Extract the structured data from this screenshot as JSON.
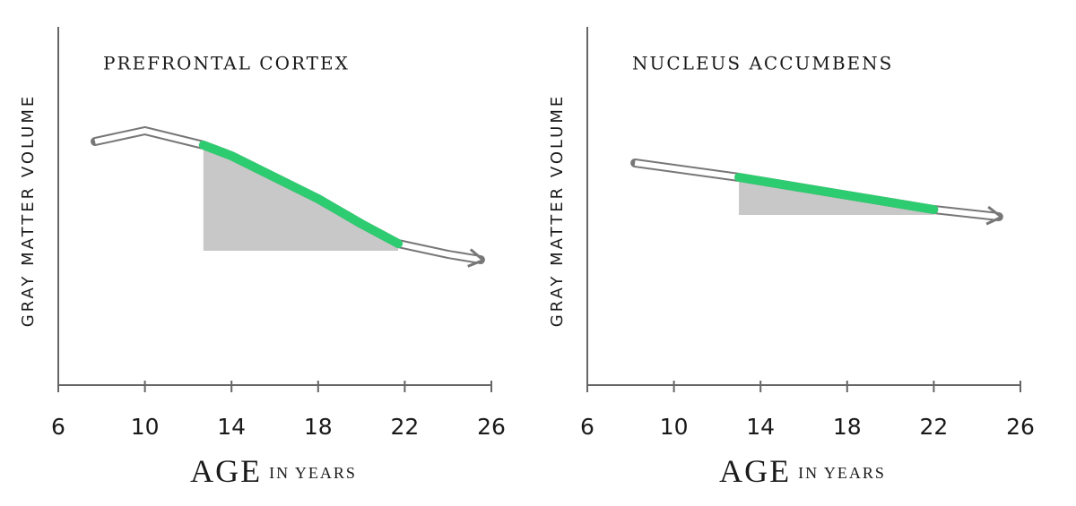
{
  "chart_data": [
    {
      "type": "line",
      "title": "PREFRONTAL CORTEX",
      "ylabel": "GRAY MATTER VOLUME",
      "xlabel": "AGE",
      "xlabel_sub": "IN YEARS",
      "x": [
        7.7,
        10,
        12.7,
        14,
        16,
        18,
        20,
        21.7,
        24,
        25.5
      ],
      "values": [
        68,
        71,
        67,
        64,
        58,
        52,
        45,
        39.5,
        36.5,
        35
      ],
      "color": "#777777",
      "highlight_x": [
        12.7,
        21.7
      ],
      "highlight_color": "#2ecc71",
      "fill_floor": 37.5,
      "fill_color": "#c8c8c8",
      "xlim": [
        6,
        26
      ],
      "xticks": [
        6,
        10,
        14,
        18,
        22,
        26
      ],
      "ylim": [
        0,
        100
      ]
    },
    {
      "type": "line",
      "title": "NUCLEUS ACCUMBENS",
      "ylabel": "GRAY MATTER VOLUME",
      "xlabel": "AGE",
      "xlabel_sub": "IN YEARS",
      "x": [
        8.2,
        13,
        16,
        19,
        22,
        25
      ],
      "values": [
        62,
        58,
        55,
        52,
        49,
        47
      ],
      "color": "#777777",
      "highlight_x": [
        13,
        22
      ],
      "highlight_color": "#2ecc71",
      "fill_floor": 47.5,
      "fill_color": "#c8c8c8",
      "xlim": [
        6,
        26
      ],
      "xticks": [
        6,
        10,
        14,
        18,
        22,
        26
      ],
      "ylim": [
        0,
        100
      ]
    }
  ]
}
